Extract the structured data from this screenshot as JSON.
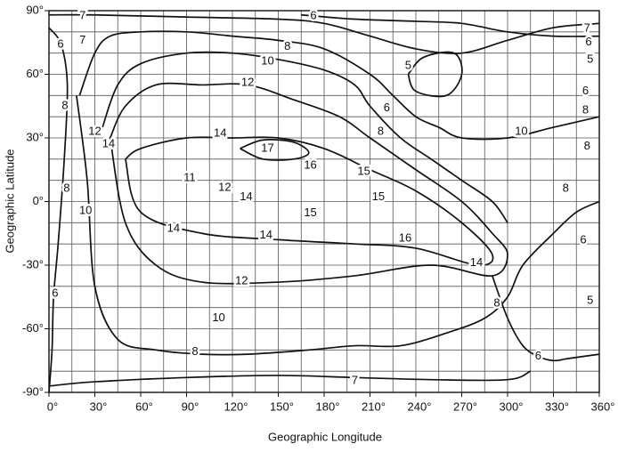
{
  "chart_data": {
    "type": "contour",
    "x_label": "Geographic Longitude",
    "y_label": "Geographic Latitude",
    "xlim": [
      0,
      360
    ],
    "ylim": [
      -90,
      90
    ],
    "xticks": [
      {
        "value": 0,
        "label": "0°"
      },
      {
        "value": 30,
        "label": "30°"
      },
      {
        "value": 60,
        "label": "60°"
      },
      {
        "value": 90,
        "label": "90°"
      },
      {
        "value": 120,
        "label": "120°"
      },
      {
        "value": 150,
        "label": "150°"
      },
      {
        "value": 180,
        "label": "180°"
      },
      {
        "value": 210,
        "label": "210°"
      },
      {
        "value": 240,
        "label": "240°"
      },
      {
        "value": 270,
        "label": "270°"
      },
      {
        "value": 300,
        "label": "300°"
      },
      {
        "value": 330,
        "label": "330°"
      },
      {
        "value": 360,
        "label": "360°"
      }
    ],
    "yticks": [
      {
        "value": 90,
        "label": "90°"
      },
      {
        "value": 60,
        "label": "60°"
      },
      {
        "value": 30,
        "label": "30°"
      },
      {
        "value": 0,
        "label": "0°"
      },
      {
        "value": -30,
        "label": "-30°"
      },
      {
        "value": -60,
        "label": "-60°"
      },
      {
        "value": -90,
        "label": "-90°"
      }
    ],
    "grid": true,
    "xgrid_step": 15,
    "ygrid_step": 10,
    "color": "#111111",
    "contours": [
      {
        "lon": [
          0,
          30,
          90,
          150,
          180,
          210,
          240,
          270,
          300,
          330,
          360
        ],
        "lat": [
          88,
          88,
          87,
          86,
          84,
          78,
          72,
          70,
          76,
          82,
          84
        ]
      },
      {
        "lon": [
          165,
          200,
          240,
          270,
          300,
          330,
          360
        ],
        "lat": [
          88,
          86,
          85,
          84,
          80,
          78,
          78
        ]
      },
      {
        "lon": [
          20,
          30,
          40,
          60,
          90,
          120,
          150,
          180,
          210,
          225,
          240,
          255,
          270,
          300,
          330,
          360
        ],
        "lat": [
          50,
          70,
          78,
          80,
          80,
          78,
          76,
          72,
          60,
          50,
          40,
          35,
          30,
          30,
          35,
          40
        ]
      },
      {
        "lon": [
          35,
          45,
          60,
          90,
          120,
          150,
          180,
          200,
          210,
          230,
          250,
          270,
          290,
          300
        ],
        "lat": [
          35,
          55,
          65,
          70,
          70,
          67,
          62,
          55,
          45,
          30,
          20,
          10,
          0,
          -10
        ]
      },
      {
        "lon": [
          40,
          50,
          70,
          100,
          130,
          160,
          190,
          210,
          240,
          270,
          290,
          300,
          290,
          250,
          200,
          150,
          100,
          70,
          50,
          40
        ],
        "lat": [
          30,
          45,
          55,
          55,
          55,
          48,
          40,
          30,
          15,
          0,
          -15,
          -25,
          -35,
          -30,
          -35,
          -38,
          -38,
          -30,
          -10,
          30
        ]
      },
      {
        "lon": [
          50,
          60,
          90,
          120,
          150,
          180,
          210,
          240,
          270,
          290,
          280,
          240,
          200,
          150,
          100,
          60,
          50
        ],
        "lat": [
          20,
          25,
          30,
          30,
          30,
          25,
          15,
          5,
          -10,
          -25,
          -30,
          -22,
          -20,
          -18,
          -15,
          -5,
          20
        ]
      },
      {
        "lon": [
          125,
          140,
          160,
          170,
          160,
          140,
          125
        ],
        "lat": [
          25,
          29,
          28,
          23,
          20,
          20,
          25
        ]
      },
      {
        "lon": [
          235,
          245,
          265,
          270,
          260,
          240,
          235
        ],
        "lat": [
          60,
          68,
          70,
          60,
          50,
          52,
          60
        ]
      },
      {
        "lon": [
          18,
          25,
          30,
          45,
          70,
          100,
          130,
          170,
          200,
          230,
          260,
          285,
          300,
          310,
          330,
          345,
          360
        ],
        "lat": [
          50,
          10,
          -40,
          -65,
          -70,
          -72,
          -72,
          -70,
          -68,
          -68,
          -62,
          -55,
          -45,
          -30,
          -15,
          -5,
          0
        ]
      },
      {
        "lon": [
          0,
          30,
          90,
          150,
          200,
          250,
          300,
          315
        ],
        "lat": [
          -87,
          -85,
          -83,
          -82,
          -83,
          -84,
          -84,
          -80
        ]
      },
      {
        "lon": [
          290,
          300,
          310,
          320,
          330,
          340,
          360
        ],
        "lat": [
          -35,
          -55,
          -68,
          -73,
          -75,
          -74,
          -72
        ]
      },
      {
        "lon": [
          0,
          8,
          12,
          10,
          6,
          3,
          2,
          0
        ],
        "lat": [
          82,
          74,
          55,
          20,
          -20,
          -45,
          -70,
          -90
        ]
      }
    ],
    "labels": [
      {
        "value": 7,
        "lon": 22,
        "lat": 87.5
      },
      {
        "value": 6,
        "lon": 173,
        "lat": 87.5
      },
      {
        "value": 7,
        "lon": 352,
        "lat": 81.6
      },
      {
        "value": 6,
        "lon": 7.6,
        "lat": 74
      },
      {
        "value": 7,
        "lon": 22,
        "lat": 76
      },
      {
        "value": 6,
        "lon": 353,
        "lat": 75
      },
      {
        "value": 8,
        "lon": 156,
        "lat": 73
      },
      {
        "value": 5,
        "lon": 354,
        "lat": 67
      },
      {
        "value": 10,
        "lon": 143,
        "lat": 66
      },
      {
        "value": 5,
        "lon": 235,
        "lat": 64
      },
      {
        "value": 12,
        "lon": 130,
        "lat": 56
      },
      {
        "value": 6,
        "lon": 351,
        "lat": 52
      },
      {
        "value": 8,
        "lon": 10.5,
        "lat": 45
      },
      {
        "value": 6,
        "lon": 221,
        "lat": 44
      },
      {
        "value": 8,
        "lon": 351,
        "lat": 43
      },
      {
        "value": 12,
        "lon": 30,
        "lat": 33
      },
      {
        "value": 8,
        "lon": 217,
        "lat": 33
      },
      {
        "value": 14,
        "lon": 112,
        "lat": 32
      },
      {
        "value": 10,
        "lon": 309,
        "lat": 33
      },
      {
        "value": 14,
        "lon": 39,
        "lat": 27
      },
      {
        "value": 17,
        "lon": 143,
        "lat": 25
      },
      {
        "value": 8,
        "lon": 352,
        "lat": 26
      },
      {
        "value": 16,
        "lon": 171,
        "lat": 17
      },
      {
        "value": 15,
        "lon": 206,
        "lat": 14
      },
      {
        "value": 11,
        "lon": 92,
        "lat": 11
      },
      {
        "value": 12,
        "lon": 115,
        "lat": 6.5
      },
      {
        "value": 8,
        "lon": 11.6,
        "lat": 6
      },
      {
        "value": 8,
        "lon": 338,
        "lat": 6
      },
      {
        "value": 14,
        "lon": 129,
        "lat": 2
      },
      {
        "value": 15,
        "lon": 215.5,
        "lat": 2
      },
      {
        "value": 10,
        "lon": 24,
        "lat": -4.5
      },
      {
        "value": 15,
        "lon": 171,
        "lat": -5.5
      },
      {
        "value": 14,
        "lon": 81.5,
        "lat": -12.8
      },
      {
        "value": 14,
        "lon": 142,
        "lat": -16
      },
      {
        "value": 16,
        "lon": 233,
        "lat": -17.4
      },
      {
        "value": 6,
        "lon": 349.5,
        "lat": -18.3
      },
      {
        "value": 14,
        "lon": 279.6,
        "lat": -29
      },
      {
        "value": 12,
        "lon": 126,
        "lat": -37.6
      },
      {
        "value": 6,
        "lon": 4,
        "lat": -43.4
      },
      {
        "value": 5,
        "lon": 354,
        "lat": -46.8
      },
      {
        "value": 8,
        "lon": 293,
        "lat": -48
      },
      {
        "value": 10,
        "lon": 111,
        "lat": -55
      },
      {
        "value": 8,
        "lon": 95.5,
        "lat": -71
      },
      {
        "value": 6,
        "lon": 320,
        "lat": -73
      },
      {
        "value": 7,
        "lon": 200,
        "lat": -84.5
      }
    ]
  }
}
